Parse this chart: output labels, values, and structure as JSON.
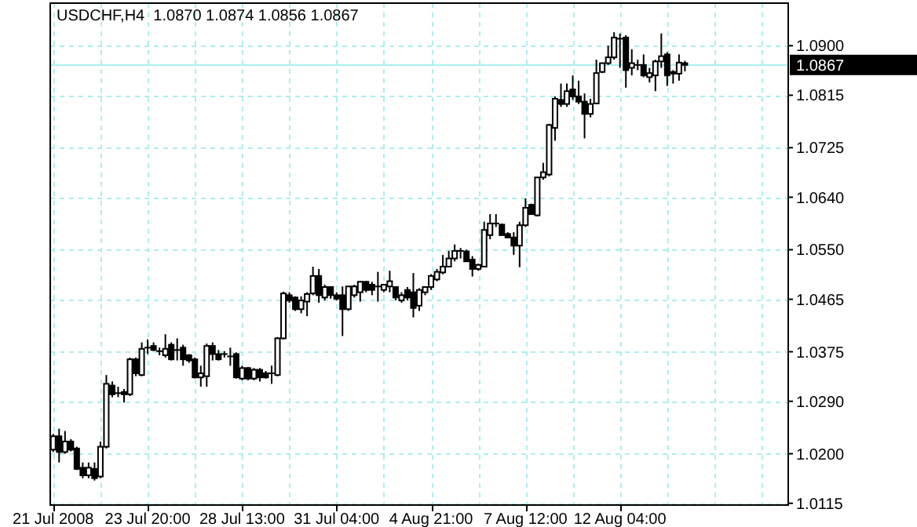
{
  "chart_data": {
    "type": "candlestick",
    "title": "USDCHF,H4  1.0870 1.0874 1.0856 1.0867",
    "categories": [
      "21 Jul 2008",
      null,
      null,
      null,
      null,
      null,
      null,
      null,
      null,
      null,
      null,
      null,
      null,
      null,
      null,
      null,
      "23 Jul 20:00",
      null,
      null,
      null,
      null,
      null,
      null,
      null,
      null,
      null,
      null,
      null,
      null,
      null,
      null,
      null,
      "28 Jul 13:00",
      null,
      null,
      null,
      null,
      null,
      null,
      null,
      null,
      null,
      null,
      null,
      null,
      null,
      null,
      null,
      "31 Jul 04:00",
      null,
      null,
      null,
      null,
      null,
      null,
      null,
      null,
      null,
      null,
      null,
      null,
      null,
      null,
      null,
      "4 Aug 21:00",
      null,
      null,
      null,
      null,
      null,
      null,
      null,
      null,
      null,
      null,
      null,
      null,
      null,
      null,
      null,
      "7 Aug 12:00",
      null,
      null,
      null,
      null,
      null,
      null,
      null,
      null,
      null,
      null,
      null,
      null,
      null,
      null,
      null,
      "12 Aug 04:00",
      null,
      null,
      null,
      null,
      null,
      null,
      null,
      null,
      null,
      null,
      null,
      null,
      null,
      null,
      null,
      null,
      null,
      null,
      null,
      null,
      null,
      null,
      null,
      null,
      null,
      null,
      null,
      null
    ],
    "ohlc": [
      [
        1.0207,
        1.0234,
        1.0203,
        1.023
      ],
      [
        1.023,
        1.0243,
        1.0185,
        1.0203
      ],
      [
        1.0203,
        1.0239,
        1.02,
        1.0221
      ],
      [
        1.0221,
        1.0225,
        1.0204,
        1.0207
      ],
      [
        1.0209,
        1.0212,
        1.0172,
        1.0174
      ],
      [
        1.0176,
        1.0185,
        1.0158,
        1.0163
      ],
      [
        1.0163,
        1.0185,
        1.0158,
        1.0176
      ],
      [
        1.0174,
        1.0185,
        1.0154,
        1.0158
      ],
      [
        1.0161,
        1.0221,
        1.0158,
        1.0212
      ],
      [
        1.0212,
        1.0335,
        1.0209,
        1.032
      ],
      [
        1.0317,
        1.0324,
        1.0297,
        1.0302
      ],
      [
        1.0304,
        1.0315,
        1.0297,
        1.0304
      ],
      [
        1.0306,
        1.0311,
        1.0288,
        1.0302
      ],
      [
        1.0302,
        1.0365,
        1.0299,
        1.0362
      ],
      [
        1.0362,
        1.0365,
        1.0333,
        1.0338
      ],
      [
        1.0335,
        1.0391,
        1.0333,
        1.038
      ],
      [
        1.0382,
        1.0396,
        1.0371,
        1.0382
      ],
      [
        1.0385,
        1.0391,
        1.0376,
        1.0378
      ],
      [
        1.0376,
        1.0382,
        1.0369,
        1.0376
      ],
      [
        1.0369,
        1.0405,
        1.0365,
        1.038
      ],
      [
        1.0387,
        1.0391,
        1.036,
        1.0362
      ],
      [
        1.0378,
        1.0398,
        1.036,
        1.0378
      ],
      [
        1.0382,
        1.0387,
        1.0351,
        1.0362
      ],
      [
        1.0369,
        1.0371,
        1.0356,
        1.036
      ],
      [
        1.0362,
        1.0365,
        1.0329,
        1.0331
      ],
      [
        1.0331,
        1.0351,
        1.0315,
        1.0338
      ],
      [
        1.0333,
        1.0389,
        1.0315,
        1.0385
      ],
      [
        1.0385,
        1.0391,
        1.036,
        1.0371
      ],
      [
        1.0371,
        1.0378,
        1.036,
        1.0362
      ],
      [
        1.0371,
        1.0376,
        1.0365,
        1.0371
      ],
      [
        1.0367,
        1.0382,
        1.0351,
        1.0367
      ],
      [
        1.0371,
        1.0374,
        1.0329,
        1.0331
      ],
      [
        1.0329,
        1.0351,
        1.0326,
        1.0347
      ],
      [
        1.0347,
        1.0349,
        1.0326,
        1.0329
      ],
      [
        1.0329,
        1.0347,
        1.0326,
        1.0344
      ],
      [
        1.0344,
        1.0347,
        1.0324,
        1.0331
      ],
      [
        1.0338,
        1.0342,
        1.0329,
        1.0331
      ],
      [
        1.0338,
        1.0351,
        1.032,
        1.0338
      ],
      [
        1.0335,
        1.04,
        1.0333,
        1.0398
      ],
      [
        1.0398,
        1.0478,
        1.0396,
        1.0475
      ],
      [
        1.0472,
        1.0477,
        1.0459,
        1.0463
      ],
      [
        1.0468,
        1.047,
        1.0445,
        1.0448
      ],
      [
        1.0448,
        1.047,
        1.0441,
        1.0463
      ],
      [
        1.0461,
        1.0477,
        1.0436,
        1.0474
      ],
      [
        1.0475,
        1.0521,
        1.0472,
        1.0505
      ],
      [
        1.0505,
        1.0517,
        1.0459,
        1.0472
      ],
      [
        1.0468,
        1.049,
        1.0463,
        1.0486
      ],
      [
        1.0486,
        1.0487,
        1.0466,
        1.0472
      ],
      [
        1.0472,
        1.0477,
        1.0463,
        1.0466
      ],
      [
        1.0472,
        1.0487,
        1.0402,
        1.0448
      ],
      [
        1.0448,
        1.0487,
        1.0445,
        1.0487
      ],
      [
        1.0472,
        1.049,
        1.0468,
        1.0487
      ],
      [
        1.0477,
        1.0496,
        1.0461,
        1.0495
      ],
      [
        1.0495,
        1.0496,
        1.0477,
        1.0481
      ],
      [
        1.049,
        1.0495,
        1.0472,
        1.0481
      ],
      [
        1.0487,
        1.0512,
        1.0461,
        1.0487
      ],
      [
        1.0481,
        1.049,
        1.0477,
        1.049
      ],
      [
        1.0487,
        1.0514,
        1.0477,
        1.0496
      ],
      [
        1.0486,
        1.0487,
        1.0463,
        1.0468
      ],
      [
        1.0463,
        1.0477,
        1.0459,
        1.0472
      ],
      [
        1.0481,
        1.0486,
        1.0463,
        1.0468
      ],
      [
        1.0477,
        1.051,
        1.0434,
        1.045
      ],
      [
        1.0454,
        1.0484,
        1.0445,
        1.0481
      ],
      [
        1.0477,
        1.0487,
        1.0472,
        1.0486
      ],
      [
        1.0486,
        1.0508,
        1.0481,
        1.0505
      ],
      [
        1.0499,
        1.0517,
        1.0496,
        1.0512
      ],
      [
        1.0511,
        1.0541,
        1.0508,
        1.0521
      ],
      [
        1.0521,
        1.0548,
        1.052,
        1.0535
      ],
      [
        1.0535,
        1.0559,
        1.053,
        1.0548
      ],
      [
        1.0548,
        1.0553,
        1.0535,
        1.0548
      ],
      [
        1.0547,
        1.055,
        1.053,
        1.053
      ],
      [
        1.0533,
        1.0539,
        1.0504,
        1.0517
      ],
      [
        1.0517,
        1.0526,
        1.0514,
        1.0524
      ],
      [
        1.0521,
        1.0598,
        1.052,
        1.0584
      ],
      [
        1.0575,
        1.0611,
        1.0568,
        1.0595
      ],
      [
        1.0595,
        1.0611,
        1.0589,
        1.0595
      ],
      [
        1.0593,
        1.0595,
        1.0575,
        1.0575
      ],
      [
        1.0577,
        1.058,
        1.0571,
        1.0571
      ],
      [
        1.0571,
        1.058,
        1.0541,
        1.0557
      ],
      [
        1.0557,
        1.0598,
        1.052,
        1.0592
      ],
      [
        1.0592,
        1.0638,
        1.0589,
        1.0622
      ],
      [
        1.0627,
        1.0629,
        1.0611,
        1.0611
      ],
      [
        1.0609,
        1.0674,
        1.0607,
        1.0674
      ],
      [
        1.0674,
        1.0699,
        1.067,
        1.0683
      ],
      [
        1.0679,
        1.0766,
        1.0676,
        1.0764
      ],
      [
        1.0759,
        1.0813,
        1.0737,
        1.0809
      ],
      [
        1.0807,
        1.0835,
        1.0795,
        1.08
      ],
      [
        1.08,
        1.0835,
        1.0795,
        1.0822
      ],
      [
        1.0825,
        1.0849,
        1.0807,
        1.0813
      ],
      [
        1.0813,
        1.084,
        1.08,
        1.0804
      ],
      [
        1.0804,
        1.0818,
        1.0741,
        1.0783
      ],
      [
        1.0783,
        1.0809,
        1.0777,
        1.08
      ],
      [
        1.0801,
        1.0876,
        1.08,
        1.0853
      ],
      [
        1.0855,
        1.0871,
        1.0853,
        1.087
      ],
      [
        1.087,
        1.09,
        1.0867,
        1.088
      ],
      [
        1.088,
        1.0923,
        1.0876,
        1.0914
      ],
      [
        1.0912,
        1.0921,
        1.0862,
        1.0912
      ],
      [
        1.0914,
        1.0918,
        1.0828,
        1.0858
      ],
      [
        1.0862,
        1.0894,
        1.0849,
        1.087
      ],
      [
        1.0867,
        1.0876,
        1.0858,
        1.0867
      ],
      [
        1.0867,
        1.0885,
        1.0846,
        1.0849
      ],
      [
        1.0846,
        1.0862,
        1.0837,
        1.0853
      ],
      [
        1.0849,
        1.0876,
        1.0822,
        1.0873
      ],
      [
        1.0873,
        1.0921,
        1.0862,
        1.0882
      ],
      [
        1.0885,
        1.0889,
        1.0831,
        1.0849
      ],
      [
        1.0855,
        1.0858,
        1.0835,
        1.0852
      ],
      [
        1.0852,
        1.0885,
        1.084,
        1.0871
      ],
      [
        1.087,
        1.0874,
        1.0856,
        1.0867
      ],
      null,
      null,
      null,
      null,
      null,
      null,
      null,
      null,
      null,
      null,
      null,
      null,
      null,
      null,
      null,
      null,
      null
    ],
    "ylim": [
      1.0112,
      1.0973
    ],
    "yticks": [
      {
        "value": 1.0115,
        "label": "1.0115"
      },
      {
        "value": 1.02,
        "label": "1.0200"
      },
      {
        "value": 1.029,
        "label": "1.0290"
      },
      {
        "value": 1.0375,
        "label": "1.0375"
      },
      {
        "value": 1.0465,
        "label": "1.0465"
      },
      {
        "value": 1.055,
        "label": "1.0550"
      },
      {
        "value": 1.064,
        "label": "1.0640"
      },
      {
        "value": 1.0725,
        "label": "1.0725"
      },
      {
        "value": 1.0815,
        "label": "1.0815"
      },
      {
        "value": 1.09,
        "label": "1.0900"
      }
    ],
    "ref_lines": [
      {
        "axis": "y",
        "value": 1.0867,
        "label": "1.0867",
        "color": "#aaeeee"
      }
    ],
    "grid": true
  }
}
